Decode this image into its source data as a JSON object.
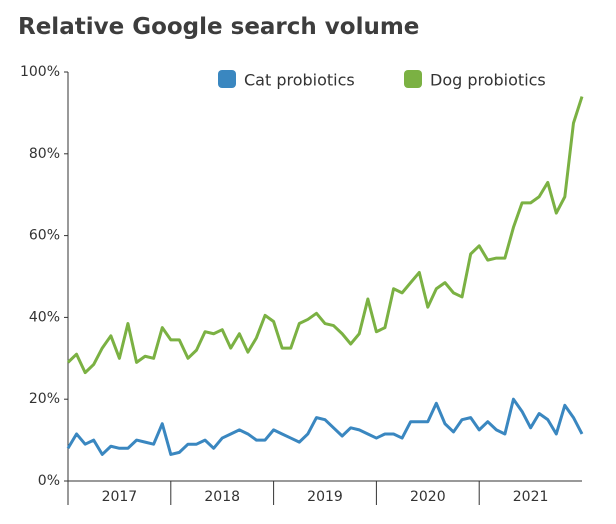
{
  "chart_data": {
    "type": "line",
    "title": "Relative Google search volume",
    "x": [
      2017,
      2017.083,
      2017.167,
      2017.25,
      2017.333,
      2017.417,
      2017.5,
      2017.583,
      2017.667,
      2017.75,
      2017.833,
      2017.917,
      2018,
      2018.083,
      2018.167,
      2018.25,
      2018.333,
      2018.417,
      2018.5,
      2018.583,
      2018.667,
      2018.75,
      2018.833,
      2018.917,
      2019,
      2019.083,
      2019.167,
      2019.25,
      2019.333,
      2019.417,
      2019.5,
      2019.583,
      2019.667,
      2019.75,
      2019.833,
      2019.917,
      2020,
      2020.083,
      2020.167,
      2020.25,
      2020.333,
      2020.417,
      2020.5,
      2020.583,
      2020.667,
      2020.75,
      2020.833,
      2020.917,
      2021,
      2021.083,
      2021.167,
      2021.25,
      2021.333,
      2021.417,
      2021.5,
      2021.583,
      2021.667,
      2021.75,
      2021.833,
      2021.917,
      2022
    ],
    "series": [
      {
        "name": "Cat probiotics",
        "color": "#3a87c0",
        "values": [
          8,
          11.5,
          9,
          10,
          6.5,
          8.5,
          8,
          8,
          10,
          9.5,
          9,
          14,
          6.5,
          7,
          9,
          9,
          10,
          8,
          10.5,
          11.5,
          12.5,
          11.5,
          10,
          10,
          12.5,
          11.5,
          10.5,
          9.5,
          11.5,
          15.5,
          15,
          13,
          11,
          13,
          12.5,
          11.5,
          10.5,
          11.5,
          11.5,
          10.5,
          14.5,
          14.5,
          14.5,
          19,
          14,
          12,
          15,
          15.5,
          12.5,
          14.5,
          12.5,
          11.5,
          20,
          17,
          13,
          16.5,
          15,
          11.5,
          18.5,
          15.5,
          11.5
        ]
      },
      {
        "name": "Dog probiotics",
        "color": "#7bb143",
        "values": [
          29,
          31,
          26.5,
          28.5,
          32.5,
          35.5,
          30,
          38.5,
          29,
          30.5,
          30,
          37.5,
          34.5,
          34.5,
          30,
          32,
          36.5,
          36,
          37,
          32.5,
          36,
          31.5,
          35,
          40.5,
          39,
          32.5,
          32.5,
          38.5,
          39.5,
          41,
          38.5,
          38,
          36,
          33.5,
          36,
          44.5,
          36.5,
          37.5,
          47,
          46,
          48.5,
          51,
          42.5,
          47,
          48.5,
          46,
          45,
          55.5,
          57.5,
          54,
          54.5,
          54.5,
          62,
          68,
          68,
          69.5,
          73,
          65.5,
          69.5,
          87.5,
          94
        ]
      }
    ],
    "xlim": [
      2017,
      2022
    ],
    "xticks": [
      {
        "value": 2017.5,
        "label": "2017"
      },
      {
        "value": 2018.5,
        "label": "2018"
      },
      {
        "value": 2019.5,
        "label": "2019"
      },
      {
        "value": 2020.5,
        "label": "2020"
      },
      {
        "value": 2021.5,
        "label": "2021"
      }
    ],
    "ylim": [
      0,
      100
    ],
    "yticks": [
      {
        "value": 0,
        "label": "0%"
      },
      {
        "value": 20,
        "label": "20%"
      },
      {
        "value": 40,
        "label": "40%"
      },
      {
        "value": 60,
        "label": "60%"
      },
      {
        "value": 80,
        "label": "80%"
      },
      {
        "value": 100,
        "label": "100%"
      }
    ],
    "legend": "top-right"
  }
}
